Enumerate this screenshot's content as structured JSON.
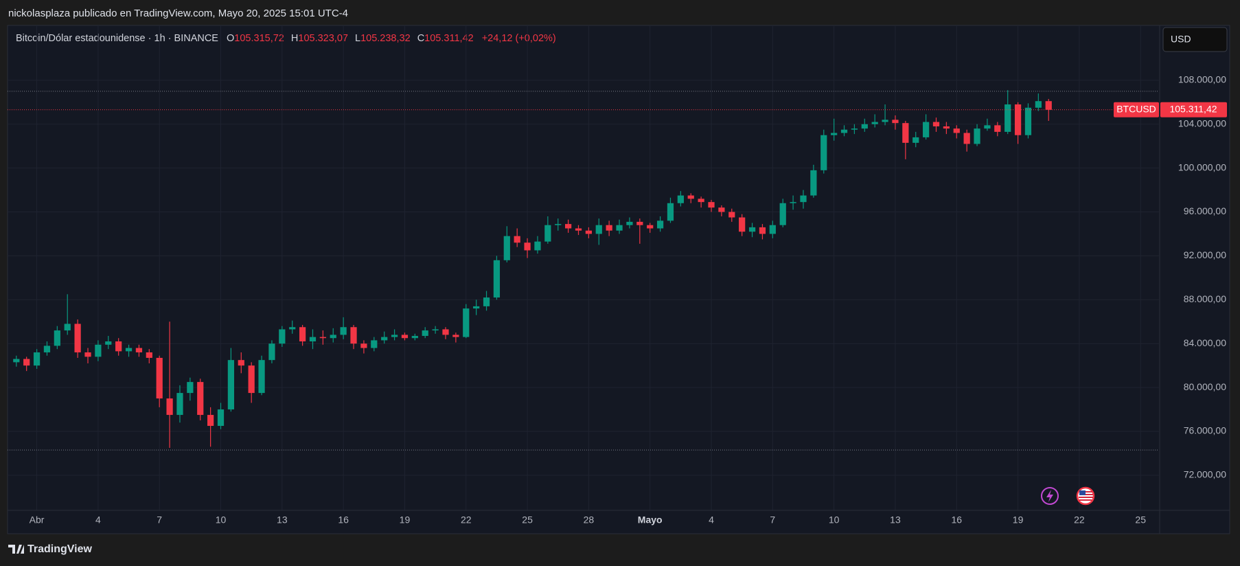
{
  "header": "nickolasplaza publicado en TradingView.com, Mayo 20, 2025 15:01 UTC-4",
  "footer": "TradingView",
  "chart_data": {
    "type": "candlestick",
    "legend": {
      "symbol": "Bitcoin/Dólar estadounidense · 1h · BINANCE",
      "open_label": "O",
      "open": "105.315,72",
      "high_label": "H",
      "high": "105.323,07",
      "low_label": "L",
      "low": "105.238,32",
      "close_label": "C",
      "close": "105.311,42",
      "change": "+24,12 (+0,02%)"
    },
    "currency": "USD",
    "up_color": "#089981",
    "down_color": "#f23645",
    "xlim": [
      -1.43,
      54.9
    ],
    "ylim": [
      68800,
      113000
    ],
    "xticks": [
      {
        "value": 0,
        "label": "Abr"
      },
      {
        "value": 3,
        "label": "4"
      },
      {
        "value": 6,
        "label": "7"
      },
      {
        "value": 9,
        "label": "10"
      },
      {
        "value": 12,
        "label": "13"
      },
      {
        "value": 15,
        "label": "16"
      },
      {
        "value": 18,
        "label": "19"
      },
      {
        "value": 21,
        "label": "22"
      },
      {
        "value": 24,
        "label": "25"
      },
      {
        "value": 27,
        "label": "28"
      },
      {
        "value": 30,
        "label": "Mayo"
      },
      {
        "value": 33,
        "label": "4"
      },
      {
        "value": 36,
        "label": "7"
      },
      {
        "value": 39,
        "label": "10"
      },
      {
        "value": 42,
        "label": "13"
      },
      {
        "value": 45,
        "label": "16"
      },
      {
        "value": 48,
        "label": "19"
      },
      {
        "value": 51,
        "label": "22"
      },
      {
        "value": 54,
        "label": "25"
      }
    ],
    "yticks": [
      {
        "value": 72000,
        "label": "72.000,00"
      },
      {
        "value": 76000,
        "label": "76.000,00"
      },
      {
        "value": 80000,
        "label": "80.000,00"
      },
      {
        "value": 84000,
        "label": "84.000,00"
      },
      {
        "value": 88000,
        "label": "88.000,00"
      },
      {
        "value": 92000,
        "label": "92.000,00"
      },
      {
        "value": 96000,
        "label": "96.000,00"
      },
      {
        "value": 100000,
        "label": "100.000,00"
      },
      {
        "value": 104000,
        "label": "104.000,00"
      },
      {
        "value": 108000,
        "label": "108.000,00"
      }
    ],
    "grid": true,
    "price_line": {
      "symbol": "BTCUSD",
      "value": 105311.42,
      "label": "105.311,42"
    },
    "range_lines": [
      107000,
      74300
    ],
    "x": [
      -1.0,
      -0.5,
      0.0,
      0.5,
      1.0,
      1.5,
      2.0,
      2.5,
      3.0,
      3.5,
      4.0,
      4.5,
      5.0,
      5.5,
      6.0,
      6.5,
      7.0,
      7.5,
      8.0,
      8.5,
      9.0,
      9.5,
      10.0,
      10.5,
      11.0,
      11.5,
      12.0,
      12.5,
      13.0,
      13.5,
      14.0,
      14.5,
      15.0,
      15.5,
      16.0,
      16.5,
      17.0,
      17.5,
      18.0,
      18.5,
      19.0,
      19.5,
      20.0,
      20.5,
      21.0,
      21.5,
      22.0,
      22.5,
      23.0,
      23.5,
      24.0,
      24.5,
      25.0,
      25.5,
      26.0,
      26.5,
      27.0,
      27.5,
      28.0,
      28.5,
      29.0,
      29.5,
      30.0,
      30.5,
      31.0,
      31.5,
      32.0,
      32.5,
      33.0,
      33.5,
      34.0,
      34.5,
      35.0,
      35.5,
      36.0,
      36.5,
      37.0,
      37.5,
      38.0,
      38.5,
      39.0,
      39.5,
      40.0,
      40.5,
      41.0,
      41.5,
      42.0,
      42.5,
      43.0,
      43.5,
      44.0,
      44.5,
      45.0,
      45.5,
      46.0,
      46.5,
      47.0,
      47.5,
      48.0,
      48.5,
      49.0,
      49.5
    ],
    "candles": [
      [
        82300,
        82900,
        81900,
        82600
      ],
      [
        82600,
        82800,
        81500,
        82000
      ],
      [
        82000,
        83500,
        81700,
        83200
      ],
      [
        83200,
        84200,
        82900,
        83800
      ],
      [
        83800,
        85600,
        83500,
        85200
      ],
      [
        85200,
        88500,
        84800,
        85800
      ],
      [
        85800,
        86200,
        82700,
        83200
      ],
      [
        83200,
        83600,
        82200,
        82800
      ],
      [
        82800,
        84300,
        82400,
        83900
      ],
      [
        83900,
        84700,
        83500,
        84200
      ],
      [
        84200,
        84500,
        82900,
        83300
      ],
      [
        83300,
        83900,
        82800,
        83600
      ],
      [
        83600,
        83900,
        82800,
        83200
      ],
      [
        83200,
        83500,
        82200,
        82700
      ],
      [
        82700,
        82900,
        78200,
        79000
      ],
      [
        79000,
        86000,
        74500,
        77500
      ],
      [
        77500,
        80200,
        76800,
        79500
      ],
      [
        79500,
        80900,
        78800,
        80500
      ],
      [
        80500,
        80800,
        77000,
        77500
      ],
      [
        77500,
        78200,
        74600,
        76500
      ],
      [
        76500,
        78600,
        76200,
        78000
      ],
      [
        78000,
        83600,
        77800,
        82500
      ],
      [
        82500,
        83200,
        81300,
        82000
      ],
      [
        82000,
        82300,
        78600,
        79500
      ],
      [
        79500,
        82900,
        79300,
        82500
      ],
      [
        82500,
        84300,
        82200,
        84000
      ],
      [
        84000,
        85600,
        83700,
        85300
      ],
      [
        85300,
        86100,
        84900,
        85500
      ],
      [
        85500,
        85700,
        83800,
        84200
      ],
      [
        84200,
        85300,
        83500,
        84600
      ],
      [
        84600,
        85200,
        83900,
        84500
      ],
      [
        84500,
        85400,
        84100,
        84800
      ],
      [
        84800,
        86400,
        84400,
        85500
      ],
      [
        85500,
        85700,
        83500,
        84000
      ],
      [
        84000,
        84300,
        83100,
        83600
      ],
      [
        83600,
        84600,
        83300,
        84300
      ],
      [
        84300,
        85100,
        84000,
        84600
      ],
      [
        84600,
        85300,
        84300,
        84800
      ],
      [
        84800,
        85000,
        84300,
        84500
      ],
      [
        84500,
        84900,
        84300,
        84700
      ],
      [
        84700,
        85500,
        84500,
        85200
      ],
      [
        85200,
        85600,
        84900,
        85300
      ],
      [
        85300,
        85500,
        84400,
        84800
      ],
      [
        84800,
        85000,
        84100,
        84600
      ],
      [
        84600,
        87600,
        84500,
        87200
      ],
      [
        87200,
        88000,
        86600,
        87400
      ],
      [
        87400,
        88800,
        87000,
        88200
      ],
      [
        88200,
        92000,
        88000,
        91600
      ],
      [
        91600,
        94700,
        91400,
        93800
      ],
      [
        93800,
        94500,
        92800,
        93200
      ],
      [
        93200,
        93600,
        91800,
        92500
      ],
      [
        92500,
        93800,
        92200,
        93300
      ],
      [
        93300,
        95600,
        93100,
        94800
      ],
      [
        94800,
        95400,
        94300,
        94900
      ],
      [
        94900,
        95300,
        94100,
        94500
      ],
      [
        94500,
        94800,
        93900,
        94300
      ],
      [
        94300,
        94600,
        93600,
        94000
      ],
      [
        94000,
        95400,
        93000,
        94800
      ],
      [
        94800,
        95200,
        93800,
        94300
      ],
      [
        94300,
        95300,
        94000,
        94800
      ],
      [
        94800,
        95500,
        94500,
        95100
      ],
      [
        95100,
        95400,
        93100,
        94800
      ],
      [
        94800,
        95000,
        94100,
        94500
      ],
      [
        94500,
        95600,
        94200,
        95200
      ],
      [
        95200,
        97300,
        95000,
        96800
      ],
      [
        96800,
        97900,
        96500,
        97500
      ],
      [
        97500,
        97700,
        96800,
        97200
      ],
      [
        97200,
        97400,
        96400,
        96900
      ],
      [
        96900,
        97100,
        96000,
        96400
      ],
      [
        96400,
        96600,
        95600,
        96000
      ],
      [
        96000,
        96300,
        95100,
        95500
      ],
      [
        95500,
        95800,
        93800,
        94200
      ],
      [
        94200,
        95000,
        93700,
        94600
      ],
      [
        94600,
        94900,
        93500,
        94000
      ],
      [
        94000,
        95200,
        93600,
        94800
      ],
      [
        94800,
        97200,
        94600,
        96800
      ],
      [
        96800,
        97500,
        96200,
        96900
      ],
      [
        96900,
        98000,
        96300,
        97500
      ],
      [
        97500,
        100300,
        97300,
        99800
      ],
      [
        99800,
        103500,
        99500,
        103000
      ],
      [
        103000,
        104500,
        102500,
        103200
      ],
      [
        103200,
        103900,
        102900,
        103500
      ],
      [
        103500,
        104000,
        103100,
        103600
      ],
      [
        103600,
        104500,
        103300,
        104000
      ],
      [
        104000,
        104900,
        103700,
        104200
      ],
      [
        104200,
        105800,
        103900,
        104400
      ],
      [
        104400,
        104800,
        103500,
        104100
      ],
      [
        104100,
        104300,
        100800,
        102300
      ],
      [
        102300,
        103300,
        101900,
        102800
      ],
      [
        102800,
        104900,
        102600,
        104200
      ],
      [
        104200,
        104600,
        103300,
        103800
      ],
      [
        103800,
        104200,
        103100,
        103600
      ],
      [
        103600,
        103900,
        102700,
        103200
      ],
      [
        103200,
        103500,
        101500,
        102200
      ],
      [
        102200,
        104000,
        102000,
        103600
      ],
      [
        103600,
        104500,
        103400,
        103900
      ],
      [
        103900,
        104200,
        102900,
        103300
      ],
      [
        103300,
        107100,
        103100,
        105800
      ],
      [
        105800,
        106000,
        102200,
        103000
      ],
      [
        103000,
        105900,
        102700,
        105500
      ],
      [
        105500,
        106800,
        105200,
        106100
      ],
      [
        106100,
        106300,
        104300,
        105311.42
      ]
    ]
  }
}
